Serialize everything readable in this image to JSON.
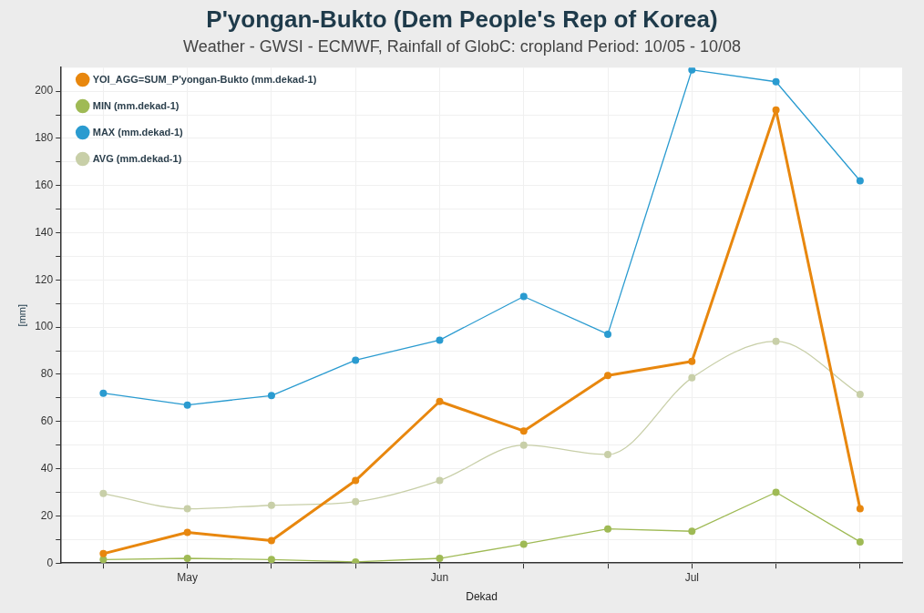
{
  "chart_data": {
    "type": "line",
    "title": "P'yongan-Bukto (Dem People's Rep of Korea)",
    "subtitle": "Weather - GWSI - ECMWF, Rainfall of GlobC: cropland  Period: 10/05 - 10/08",
    "xlabel": "Dekad",
    "ylabel": "[mm]",
    "categories": [
      null,
      "May",
      null,
      null,
      "Jun",
      null,
      null,
      "Jul",
      null,
      null
    ],
    "series": [
      {
        "name": "YOI_AGG=SUM_P'yongan-Bukto (mm.dekad-1)",
        "color": "#e8870e",
        "values": [
          4,
          13,
          9.5,
          35,
          68.5,
          56,
          79.5,
          85.5,
          192,
          23
        ]
      },
      {
        "name": "MIN (mm.dekad-1)",
        "color": "#9fba55",
        "values": [
          1.5,
          2,
          1.5,
          0.5,
          2,
          8,
          14.5,
          13.5,
          30,
          9
        ]
      },
      {
        "name": "MAX (mm.dekad-1)",
        "color": "#2a9bd0",
        "values": [
          72,
          67,
          71,
          86,
          94.5,
          113,
          97,
          209,
          204,
          162
        ]
      },
      {
        "name": "AVG (mm.dekad-1)",
        "color": "#c8cfa8",
        "values": [
          29.5,
          23,
          24.5,
          26,
          35,
          50,
          46,
          78.5,
          94,
          71.5
        ]
      }
    ],
    "ylim": [
      0,
      210
    ],
    "yticks": [
      0,
      {
        "value": 10,
        "label": null
      },
      20,
      {
        "value": 30,
        "label": null
      },
      40,
      {
        "value": 50,
        "label": null
      },
      60,
      {
        "value": 70,
        "label": null
      },
      80,
      {
        "value": 90,
        "label": null
      },
      100,
      {
        "value": 110,
        "label": null
      },
      120,
      {
        "value": 130,
        "label": null
      },
      140,
      {
        "value": 150,
        "label": null
      },
      160,
      {
        "value": 170,
        "label": null
      },
      180,
      {
        "value": 190,
        "label": null
      },
      200
    ],
    "grid": true,
    "legend": "top left",
    "marker": "circle",
    "line_style": "solid"
  }
}
